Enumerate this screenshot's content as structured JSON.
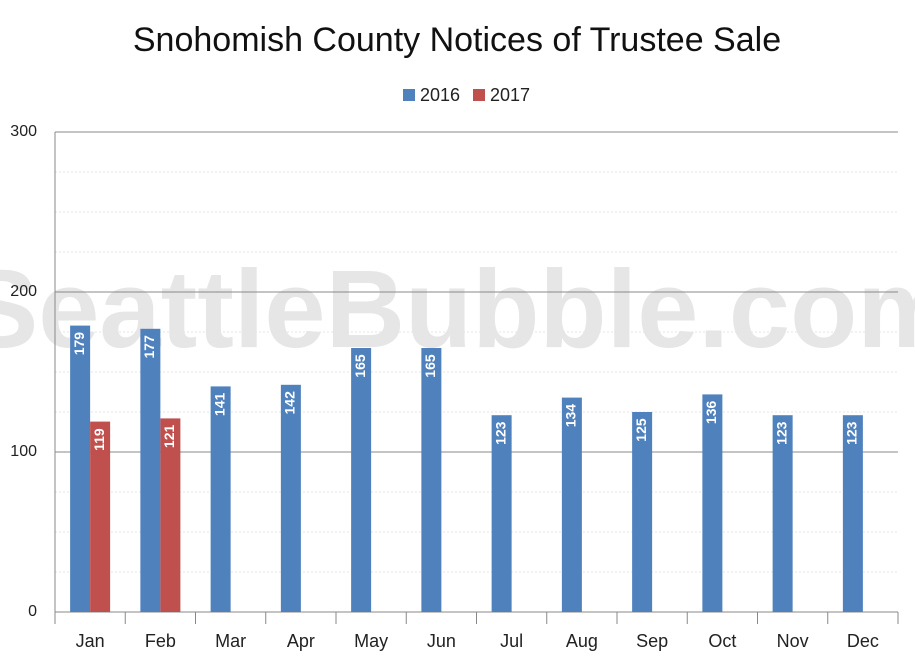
{
  "chart_data": {
    "type": "bar",
    "title": "Snohomish County Notices of Trustee Sale",
    "watermark": "SeattleBubble.com",
    "categories": [
      "Jan",
      "Feb",
      "Mar",
      "Apr",
      "May",
      "Jun",
      "Jul",
      "Aug",
      "Sep",
      "Oct",
      "Nov",
      "Dec"
    ],
    "series": [
      {
        "name": "2016",
        "color": "#4f81bd",
        "values": [
          179,
          177,
          141,
          142,
          165,
          165,
          123,
          134,
          125,
          136,
          123,
          123
        ]
      },
      {
        "name": "2017",
        "color": "#c0504d",
        "values": [
          119,
          121,
          null,
          null,
          null,
          null,
          null,
          null,
          null,
          null,
          null,
          null
        ]
      }
    ],
    "ylim": [
      0,
      300
    ],
    "yticks": [
      0,
      100,
      200,
      300
    ],
    "minor_yticks": [
      25,
      50,
      75,
      125,
      150,
      175,
      225,
      250,
      275
    ],
    "grid": true,
    "legend": "top"
  }
}
